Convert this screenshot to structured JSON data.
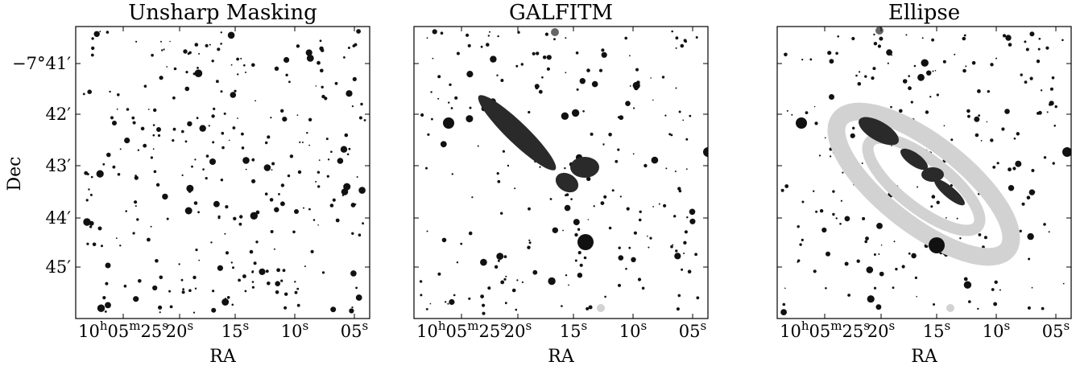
{
  "figure": {
    "ylabel": "Dec",
    "yticks": [
      {
        "main": "−7°41′",
        "value": 41
      },
      {
        "main": "42′",
        "value": 42
      },
      {
        "main": "43′",
        "value": 43
      },
      {
        "main": "44′",
        "value": 44
      },
      {
        "main": "45′",
        "value": 45
      }
    ],
    "xticks": [
      {
        "parts": [
          {
            "t": "10",
            "sup": false
          },
          {
            "t": "h",
            "sup": true
          },
          {
            "t": "05",
            "sup": false
          },
          {
            "t": "m",
            "sup": true
          },
          {
            "t": "25",
            "sup": false
          },
          {
            "t": "s",
            "sup": true
          }
        ],
        "value": 25
      },
      {
        "parts": [
          {
            "t": "20",
            "sup": false
          },
          {
            "t": "s",
            "sup": true
          }
        ],
        "value": 20
      },
      {
        "parts": [
          {
            "t": "15",
            "sup": false
          },
          {
            "t": "s",
            "sup": true
          }
        ],
        "value": 15
      },
      {
        "parts": [
          {
            "t": "10",
            "sup": false
          },
          {
            "t": "s",
            "sup": true
          }
        ],
        "value": 10
      },
      {
        "parts": [
          {
            "t": "05",
            "sup": false
          },
          {
            "t": "s",
            "sup": true
          }
        ],
        "value": 5
      }
    ],
    "panels": [
      {
        "title": "Unsharp Masking",
        "xlabel": "RA",
        "mask": "unsharp"
      },
      {
        "title": "GALFITM",
        "xlabel": "RA",
        "mask": "galfitm"
      },
      {
        "title": "Ellipse",
        "xlabel": "RA",
        "mask": "ellipse"
      }
    ],
    "colors": {
      "star": "#111111",
      "dark": "#2a2a2a",
      "mid": "#666666",
      "light": "#d2d2d2",
      "frame": "#000000"
    }
  }
}
